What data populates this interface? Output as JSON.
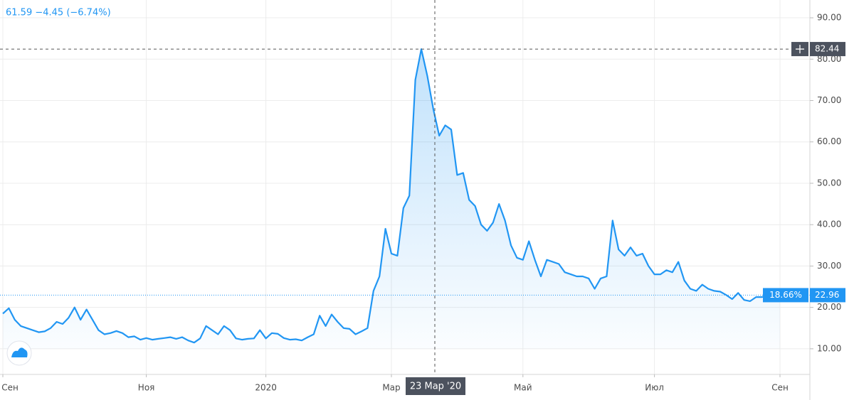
{
  "chart_data": {
    "type": "line",
    "header": "61.59 −4.45 (−6.74%)",
    "crosshair_date": "23 Мар '20",
    "change_label": "18.66%",
    "color": "#2196f3",
    "grid": true,
    "ylim": [
      3.8,
      94.3
    ],
    "yticks": [
      {
        "value": 10,
        "label": "10.00"
      },
      {
        "value": 20,
        "label": "20.00"
      },
      {
        "value": 30,
        "label": "30.00"
      },
      {
        "value": 40,
        "label": "40.00"
      },
      {
        "value": 50,
        "label": "50.00"
      },
      {
        "value": 60,
        "label": "60.00"
      },
      {
        "value": 70,
        "label": "70.00"
      },
      {
        "value": 80,
        "label": "80.00"
      },
      {
        "value": 90,
        "label": "90.00"
      }
    ],
    "categories": [
      "Сен",
      null,
      null,
      null,
      null,
      null,
      null,
      null,
      null,
      null,
      null,
      null,
      null,
      null,
      null,
      null,
      null,
      null,
      null,
      null,
      null,
      null,
      null,
      null,
      "Ноя",
      null,
      null,
      null,
      null,
      null,
      null,
      null,
      null,
      null,
      null,
      null,
      null,
      null,
      null,
      null,
      null,
      null,
      null,
      null,
      "2020",
      null,
      null,
      null,
      null,
      null,
      null,
      null,
      null,
      null,
      null,
      null,
      null,
      null,
      null,
      null,
      null,
      null,
      null,
      null,
      null,
      "Мар",
      null,
      null,
      null,
      null,
      null,
      null,
      null,
      null,
      null,
      null,
      null,
      null,
      null,
      null,
      null,
      null,
      null,
      null,
      null,
      null,
      null,
      "Май",
      null,
      null,
      null,
      null,
      null,
      null,
      null,
      null,
      null,
      null,
      null,
      null,
      null,
      null,
      null,
      null,
      null,
      null,
      null,
      null,
      null,
      "Июл",
      null,
      null,
      null,
      null,
      null,
      null,
      null,
      null,
      null,
      null,
      null,
      null,
      null,
      null,
      null,
      null,
      null,
      null,
      null,
      null,
      "Сен"
    ],
    "values": [
      18.5,
      19.8,
      17,
      15.5,
      15,
      14.5,
      14,
      14.2,
      15,
      16.5,
      16,
      17.5,
      20,
      17,
      19.5,
      17,
      14.5,
      13.5,
      13.8,
      14.3,
      13.8,
      12.8,
      13,
      12.2,
      12.6,
      12.2,
      12.4,
      12.6,
      12.8,
      12.4,
      12.8,
      12,
      11.5,
      12.5,
      15.5,
      14.5,
      13.5,
      15.5,
      14.5,
      12.5,
      12.2,
      12.4,
      12.5,
      14.5,
      12.5,
      13.8,
      13.6,
      12.6,
      12.2,
      12.3,
      12,
      12.8,
      13.5,
      18,
      15.5,
      18.3,
      16.5,
      15,
      14.8,
      13.5,
      14.2,
      15,
      24,
      27.5,
      39,
      33,
      32.5,
      44,
      47,
      75,
      82.44,
      76,
      68,
      61.5,
      64,
      63,
      52,
      52.5,
      46,
      44.5,
      40,
      38.5,
      40.5,
      45,
      41,
      35,
      32,
      31.5,
      36,
      31.5,
      27.5,
      31.5,
      31,
      30.5,
      28.5,
      28,
      27.5,
      27.5,
      27,
      24.5,
      27,
      27.5,
      41,
      34,
      32.5,
      34.5,
      32.5,
      33,
      30,
      28,
      28,
      29,
      28.5,
      31,
      26.5,
      24.5,
      24,
      25.5,
      24.5,
      24,
      23.8,
      23,
      22,
      23.5,
      21.8,
      21.5,
      22.5,
      22.5,
      22.8,
      23,
      22.96
    ]
  }
}
